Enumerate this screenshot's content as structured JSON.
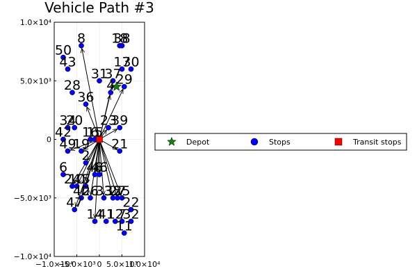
{
  "chart_data": {
    "type": "scatter",
    "title": "Vehicle Path #3",
    "xlim": [
      -10000,
      10000
    ],
    "ylim": [
      -10000,
      10000
    ],
    "x_ticks": [
      {
        "value": -10000,
        "label": "−1.0×10⁴"
      },
      {
        "value": -5000,
        "label": "−5.0×10³"
      },
      {
        "value": 0,
        "label": "0"
      },
      {
        "value": 5000,
        "label": "5.0×10³"
      },
      {
        "value": 10000,
        "label": "1.0×10⁴"
      }
    ],
    "y_ticks": [
      {
        "value": 10000,
        "label": "1.0×10⁴"
      },
      {
        "value": 5000,
        "label": "5.0×10³"
      },
      {
        "value": 0,
        "label": "0"
      },
      {
        "value": -5000,
        "label": "−5.0×10³"
      },
      {
        "value": -10000,
        "label": "−1.0×10⁴"
      }
    ],
    "grid": true,
    "legend_position": "right",
    "legend": [
      {
        "name": "Depot",
        "marker": "star",
        "color": "#118211"
      },
      {
        "name": "Stops",
        "marker": "circle",
        "color": "#0000ff"
      },
      {
        "name": "Transit stops",
        "marker": "square",
        "color": "#ff0000"
      }
    ],
    "depot": {
      "x": 3800,
      "y": 4500
    },
    "transit": {
      "x": 0,
      "y": 0
    },
    "stops": [
      {
        "label": "8",
        "x": -4000,
        "y": 8000
      },
      {
        "label": "18",
        "x": 4500,
        "y": 8000
      },
      {
        "label": "38",
        "x": 5000,
        "y": 8000
      },
      {
        "label": "50",
        "x": -8000,
        "y": 7000
      },
      {
        "label": "43",
        "x": -7000,
        "y": 6000
      },
      {
        "label": "17",
        "x": 5000,
        "y": 6000
      },
      {
        "label": "30",
        "x": 7000,
        "y": 6000
      },
      {
        "label": "31",
        "x": 0,
        "y": 5000
      },
      {
        "label": "37",
        "x": 3000,
        "y": 5000
      },
      {
        "label": "4",
        "x": 2500,
        "y": 4000
      },
      {
        "label": "29",
        "x": 5500,
        "y": 4500
      },
      {
        "label": "28",
        "x": -6000,
        "y": 4000
      },
      {
        "label": "36",
        "x": -3000,
        "y": 3000
      },
      {
        "label": "34",
        "x": -7000,
        "y": 1000
      },
      {
        "label": "20",
        "x": -5500,
        "y": 1000
      },
      {
        "label": "23",
        "x": 2000,
        "y": 1000
      },
      {
        "label": "39",
        "x": 4500,
        "y": 1000
      },
      {
        "label": "42",
        "x": -8000,
        "y": 0
      },
      {
        "label": "16",
        "x": -2000,
        "y": 0
      },
      {
        "label": "15",
        "x": -1000,
        "y": 0
      },
      {
        "label": "49",
        "x": -7000,
        "y": -1000
      },
      {
        "label": "19",
        "x": -4000,
        "y": -1000
      },
      {
        "label": "21",
        "x": 4500,
        "y": -1000
      },
      {
        "label": "2",
        "x": -3000,
        "y": -2000
      },
      {
        "label": "6",
        "x": -8000,
        "y": -3000
      },
      {
        "label": "48",
        "x": -1000,
        "y": -3000
      },
      {
        "label": "46",
        "x": 0,
        "y": -3000
      },
      {
        "label": "24",
        "x": -6000,
        "y": -4000
      },
      {
        "label": "10",
        "x": -5000,
        "y": -4000
      },
      {
        "label": "5",
        "x": -3000,
        "y": -4000
      },
      {
        "label": "40",
        "x": -4000,
        "y": -5000
      },
      {
        "label": "26",
        "x": -2000,
        "y": -5000
      },
      {
        "label": "33",
        "x": 1000,
        "y": -5000
      },
      {
        "label": "35",
        "x": 3000,
        "y": -5000
      },
      {
        "label": "27",
        "x": 4000,
        "y": -5000
      },
      {
        "label": "25",
        "x": 5000,
        "y": -5000
      },
      {
        "label": "47",
        "x": -5500,
        "y": -6000
      },
      {
        "label": "22",
        "x": 7000,
        "y": -6000
      },
      {
        "label": "14",
        "x": -1000,
        "y": -7000
      },
      {
        "label": "41",
        "x": 1500,
        "y": -7000
      },
      {
        "label": "12",
        "x": 3500,
        "y": -7000
      },
      {
        "label": "7",
        "x": 5000,
        "y": -7000
      },
      {
        "label": "32",
        "x": 7000,
        "y": -7000
      },
      {
        "label": "11",
        "x": 5500,
        "y": -8000
      }
    ],
    "path_edges": [
      [
        "transit",
        "8"
      ],
      [
        "transit",
        "36"
      ],
      [
        "transit",
        "37"
      ],
      [
        "transit",
        "4"
      ],
      [
        "transit",
        "29"
      ],
      [
        "transit",
        "23"
      ],
      [
        "transit",
        "39"
      ],
      [
        "transit",
        "21"
      ],
      [
        "transit",
        "2"
      ],
      [
        "transit",
        "5"
      ],
      [
        "transit",
        "48"
      ],
      [
        "transit",
        "46"
      ],
      [
        "transit",
        "40"
      ],
      [
        "transit",
        "26"
      ],
      [
        "transit",
        "47"
      ],
      [
        "transit",
        "33"
      ],
      [
        "transit",
        "16"
      ],
      [
        "transit",
        "15"
      ],
      [
        "transit",
        "19"
      ],
      [
        "transit",
        "49"
      ],
      [
        "transit",
        "25"
      ],
      [
        "transit",
        "27"
      ],
      [
        "transit",
        "10"
      ],
      [
        "transit",
        "24"
      ],
      [
        "transit",
        "14"
      ],
      [
        "transit",
        "35"
      ]
    ]
  }
}
